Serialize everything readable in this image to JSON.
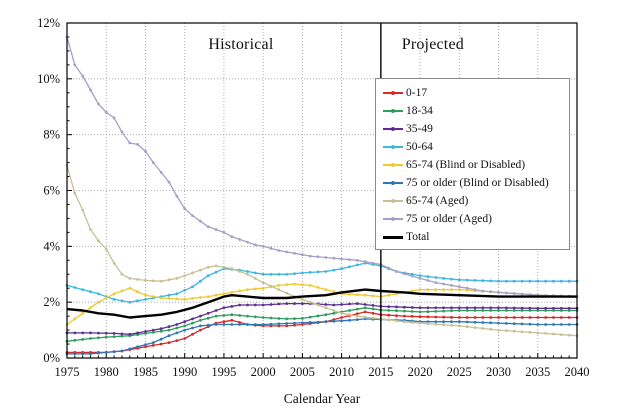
{
  "figure": {
    "historical_label": "Historical",
    "projected_label": "Projected"
  },
  "chart_data": {
    "type": "line",
    "title": "",
    "xlabel": "Calendar Year",
    "ylabel": "",
    "x_range": [
      1975,
      2040
    ],
    "y_range": [
      0,
      12
    ],
    "y_unit": "%",
    "grid": true,
    "legend_position": "upper-right-inside",
    "divider": {
      "year": 2015,
      "label_left": "Historical",
      "label_right": "Projected"
    },
    "x_ticks": [
      1975,
      1980,
      1985,
      1990,
      1995,
      2000,
      2005,
      2010,
      2015,
      2020,
      2025,
      2030,
      2035,
      2040
    ],
    "y_ticks": [
      {
        "value": 0,
        "label": "0%"
      },
      {
        "value": 2,
        "label": "2%"
      },
      {
        "value": 4,
        "label": "4%"
      },
      {
        "value": 6,
        "label": "6%"
      },
      {
        "value": 8,
        "label": "8%"
      },
      {
        "value": 10,
        "label": "10%"
      },
      {
        "value": 12,
        "label": "12%"
      }
    ],
    "series": [
      {
        "name": "0-17",
        "color": "#d42a2a",
        "width": 1.3,
        "markers": true,
        "points": [
          [
            1975,
            0.2
          ],
          [
            1977,
            0.2
          ],
          [
            1980,
            0.2
          ],
          [
            1982,
            0.25
          ],
          [
            1984,
            0.35
          ],
          [
            1986,
            0.45
          ],
          [
            1988,
            0.55
          ],
          [
            1990,
            0.7
          ],
          [
            1992,
            1.0
          ],
          [
            1994,
            1.25
          ],
          [
            1996,
            1.35
          ],
          [
            1998,
            1.2
          ],
          [
            2000,
            1.15
          ],
          [
            2003,
            1.15
          ],
          [
            2005,
            1.2
          ],
          [
            2008,
            1.3
          ],
          [
            2010,
            1.45
          ],
          [
            2013,
            1.65
          ],
          [
            2015,
            1.55
          ],
          [
            2018,
            1.5
          ],
          [
            2020,
            1.48
          ],
          [
            2025,
            1.45
          ],
          [
            2030,
            1.45
          ],
          [
            2035,
            1.45
          ],
          [
            2040,
            1.45
          ]
        ]
      },
      {
        "name": "18-34",
        "color": "#2e9c5c",
        "width": 1.3,
        "markers": true,
        "points": [
          [
            1975,
            0.6
          ],
          [
            1978,
            0.7
          ],
          [
            1980,
            0.75
          ],
          [
            1983,
            0.8
          ],
          [
            1985,
            0.88
          ],
          [
            1988,
            1.0
          ],
          [
            1990,
            1.15
          ],
          [
            1992,
            1.35
          ],
          [
            1994,
            1.5
          ],
          [
            1996,
            1.55
          ],
          [
            1998,
            1.5
          ],
          [
            2000,
            1.45
          ],
          [
            2003,
            1.4
          ],
          [
            2005,
            1.42
          ],
          [
            2008,
            1.55
          ],
          [
            2010,
            1.65
          ],
          [
            2013,
            1.8
          ],
          [
            2015,
            1.72
          ],
          [
            2018,
            1.68
          ],
          [
            2020,
            1.65
          ],
          [
            2025,
            1.7
          ],
          [
            2030,
            1.7
          ],
          [
            2035,
            1.7
          ],
          [
            2040,
            1.7
          ]
        ]
      },
      {
        "name": "35-49",
        "color": "#5d2d91",
        "width": 1.3,
        "markers": true,
        "points": [
          [
            1975,
            0.9
          ],
          [
            1978,
            0.9
          ],
          [
            1981,
            0.88
          ],
          [
            1983,
            0.85
          ],
          [
            1985,
            0.95
          ],
          [
            1987,
            1.05
          ],
          [
            1989,
            1.2
          ],
          [
            1991,
            1.4
          ],
          [
            1993,
            1.6
          ],
          [
            1995,
            1.8
          ],
          [
            1997,
            1.9
          ],
          [
            2000,
            1.9
          ],
          [
            2003,
            1.95
          ],
          [
            2006,
            1.95
          ],
          [
            2009,
            1.9
          ],
          [
            2012,
            1.95
          ],
          [
            2015,
            1.85
          ],
          [
            2018,
            1.82
          ],
          [
            2020,
            1.8
          ],
          [
            2025,
            1.8
          ],
          [
            2030,
            1.8
          ],
          [
            2035,
            1.78
          ],
          [
            2040,
            1.78
          ]
        ]
      },
      {
        "name": "50-64",
        "color": "#3fb5e0",
        "width": 1.3,
        "markers": true,
        "points": [
          [
            1975,
            2.6
          ],
          [
            1977,
            2.45
          ],
          [
            1979,
            2.3
          ],
          [
            1981,
            2.1
          ],
          [
            1983,
            2.0
          ],
          [
            1985,
            2.1
          ],
          [
            1987,
            2.2
          ],
          [
            1989,
            2.3
          ],
          [
            1991,
            2.55
          ],
          [
            1993,
            2.95
          ],
          [
            1995,
            3.2
          ],
          [
            1997,
            3.15
          ],
          [
            2000,
            3.0
          ],
          [
            2003,
            3.0
          ],
          [
            2005,
            3.05
          ],
          [
            2008,
            3.1
          ],
          [
            2010,
            3.2
          ],
          [
            2013,
            3.4
          ],
          [
            2015,
            3.3
          ],
          [
            2017,
            3.1
          ],
          [
            2020,
            2.95
          ],
          [
            2023,
            2.85
          ],
          [
            2025,
            2.8
          ],
          [
            2030,
            2.75
          ],
          [
            2035,
            2.75
          ],
          [
            2040,
            2.75
          ]
        ]
      },
      {
        "name": "65-74 (Blind or Disabled)",
        "color": "#f0c832",
        "width": 1.3,
        "markers": true,
        "points": [
          [
            1975,
            1.2
          ],
          [
            1977,
            1.6
          ],
          [
            1979,
            2.0
          ],
          [
            1981,
            2.3
          ],
          [
            1983,
            2.5
          ],
          [
            1985,
            2.25
          ],
          [
            1987,
            2.15
          ],
          [
            1990,
            2.1
          ],
          [
            1993,
            2.2
          ],
          [
            1995,
            2.3
          ],
          [
            1998,
            2.45
          ],
          [
            2000,
            2.5
          ],
          [
            2002,
            2.6
          ],
          [
            2004,
            2.65
          ],
          [
            2006,
            2.6
          ],
          [
            2008,
            2.45
          ],
          [
            2010,
            2.3
          ],
          [
            2013,
            2.25
          ],
          [
            2015,
            2.2
          ],
          [
            2018,
            2.35
          ],
          [
            2020,
            2.45
          ],
          [
            2025,
            2.45
          ],
          [
            2030,
            2.35
          ],
          [
            2035,
            2.25
          ],
          [
            2040,
            2.2
          ]
        ]
      },
      {
        "name": "75 or older (Blind or Disabled)",
        "color": "#2e77b4",
        "width": 1.3,
        "markers": true,
        "points": [
          [
            1975,
            0.15
          ],
          [
            1978,
            0.15
          ],
          [
            1980,
            0.2
          ],
          [
            1982,
            0.25
          ],
          [
            1984,
            0.4
          ],
          [
            1986,
            0.55
          ],
          [
            1988,
            0.8
          ],
          [
            1990,
            1.0
          ],
          [
            1992,
            1.15
          ],
          [
            1994,
            1.2
          ],
          [
            1997,
            1.2
          ],
          [
            2000,
            1.2
          ],
          [
            2004,
            1.25
          ],
          [
            2008,
            1.3
          ],
          [
            2011,
            1.35
          ],
          [
            2013,
            1.4
          ],
          [
            2015,
            1.38
          ],
          [
            2018,
            1.35
          ],
          [
            2020,
            1.3
          ],
          [
            2025,
            1.3
          ],
          [
            2030,
            1.25
          ],
          [
            2035,
            1.2
          ],
          [
            2040,
            1.2
          ]
        ]
      },
      {
        "name": "65-74 (Aged)",
        "color": "#c6c194",
        "width": 1.3,
        "markers": true,
        "points": [
          [
            1975,
            6.9
          ],
          [
            1976,
            5.9
          ],
          [
            1977,
            5.3
          ],
          [
            1978,
            4.6
          ],
          [
            1979,
            4.2
          ],
          [
            1980,
            3.9
          ],
          [
            1981,
            3.4
          ],
          [
            1982,
            3.0
          ],
          [
            1983,
            2.85
          ],
          [
            1985,
            2.78
          ],
          [
            1987,
            2.75
          ],
          [
            1989,
            2.85
          ],
          [
            1991,
            3.05
          ],
          [
            1993,
            3.25
          ],
          [
            1994,
            3.3
          ],
          [
            1996,
            3.2
          ],
          [
            1998,
            3.0
          ],
          [
            2000,
            2.7
          ],
          [
            2002,
            2.45
          ],
          [
            2004,
            2.2
          ],
          [
            2006,
            2.0
          ],
          [
            2008,
            1.8
          ],
          [
            2010,
            1.6
          ],
          [
            2012,
            1.5
          ],
          [
            2015,
            1.4
          ],
          [
            2018,
            1.3
          ],
          [
            2020,
            1.25
          ],
          [
            2025,
            1.15
          ],
          [
            2030,
            1.0
          ],
          [
            2035,
            0.9
          ],
          [
            2040,
            0.8
          ]
        ]
      },
      {
        "name": "75 or older (Aged)",
        "color": "#a3a1c8",
        "width": 1.3,
        "markers": true,
        "points": [
          [
            1975,
            11.5
          ],
          [
            1976,
            10.5
          ],
          [
            1977,
            10.1
          ],
          [
            1978,
            9.6
          ],
          [
            1979,
            9.1
          ],
          [
            1980,
            8.8
          ],
          [
            1981,
            8.6
          ],
          [
            1982,
            8.1
          ],
          [
            1983,
            7.7
          ],
          [
            1984,
            7.65
          ],
          [
            1985,
            7.4
          ],
          [
            1986,
            7.0
          ],
          [
            1987,
            6.65
          ],
          [
            1988,
            6.3
          ],
          [
            1989,
            5.8
          ],
          [
            1990,
            5.35
          ],
          [
            1991,
            5.1
          ],
          [
            1992,
            4.9
          ],
          [
            1993,
            4.7
          ],
          [
            1994,
            4.6
          ],
          [
            1995,
            4.5
          ],
          [
            1996,
            4.35
          ],
          [
            1997,
            4.25
          ],
          [
            1998,
            4.15
          ],
          [
            1999,
            4.05
          ],
          [
            2000,
            4.0
          ],
          [
            2002,
            3.85
          ],
          [
            2004,
            3.75
          ],
          [
            2006,
            3.65
          ],
          [
            2008,
            3.6
          ],
          [
            2010,
            3.55
          ],
          [
            2012,
            3.5
          ],
          [
            2014,
            3.4
          ],
          [
            2015,
            3.35
          ],
          [
            2017,
            3.1
          ],
          [
            2020,
            2.85
          ],
          [
            2022,
            2.7
          ],
          [
            2025,
            2.55
          ],
          [
            2028,
            2.4
          ],
          [
            2030,
            2.35
          ],
          [
            2035,
            2.25
          ],
          [
            2040,
            2.2
          ]
        ]
      },
      {
        "name": "Total",
        "color": "#000000",
        "width": 2.4,
        "markers": false,
        "points": [
          [
            1975,
            1.75
          ],
          [
            1977,
            1.7
          ],
          [
            1979,
            1.6
          ],
          [
            1981,
            1.55
          ],
          [
            1983,
            1.45
          ],
          [
            1985,
            1.5
          ],
          [
            1987,
            1.55
          ],
          [
            1989,
            1.65
          ],
          [
            1991,
            1.8
          ],
          [
            1993,
            2.0
          ],
          [
            1995,
            2.2
          ],
          [
            1996,
            2.25
          ],
          [
            1998,
            2.2
          ],
          [
            2000,
            2.15
          ],
          [
            2003,
            2.15
          ],
          [
            2005,
            2.2
          ],
          [
            2008,
            2.25
          ],
          [
            2010,
            2.35
          ],
          [
            2013,
            2.45
          ],
          [
            2015,
            2.4
          ],
          [
            2018,
            2.35
          ],
          [
            2020,
            2.3
          ],
          [
            2025,
            2.25
          ],
          [
            2030,
            2.2
          ],
          [
            2035,
            2.2
          ],
          [
            2040,
            2.2
          ]
        ]
      }
    ]
  }
}
